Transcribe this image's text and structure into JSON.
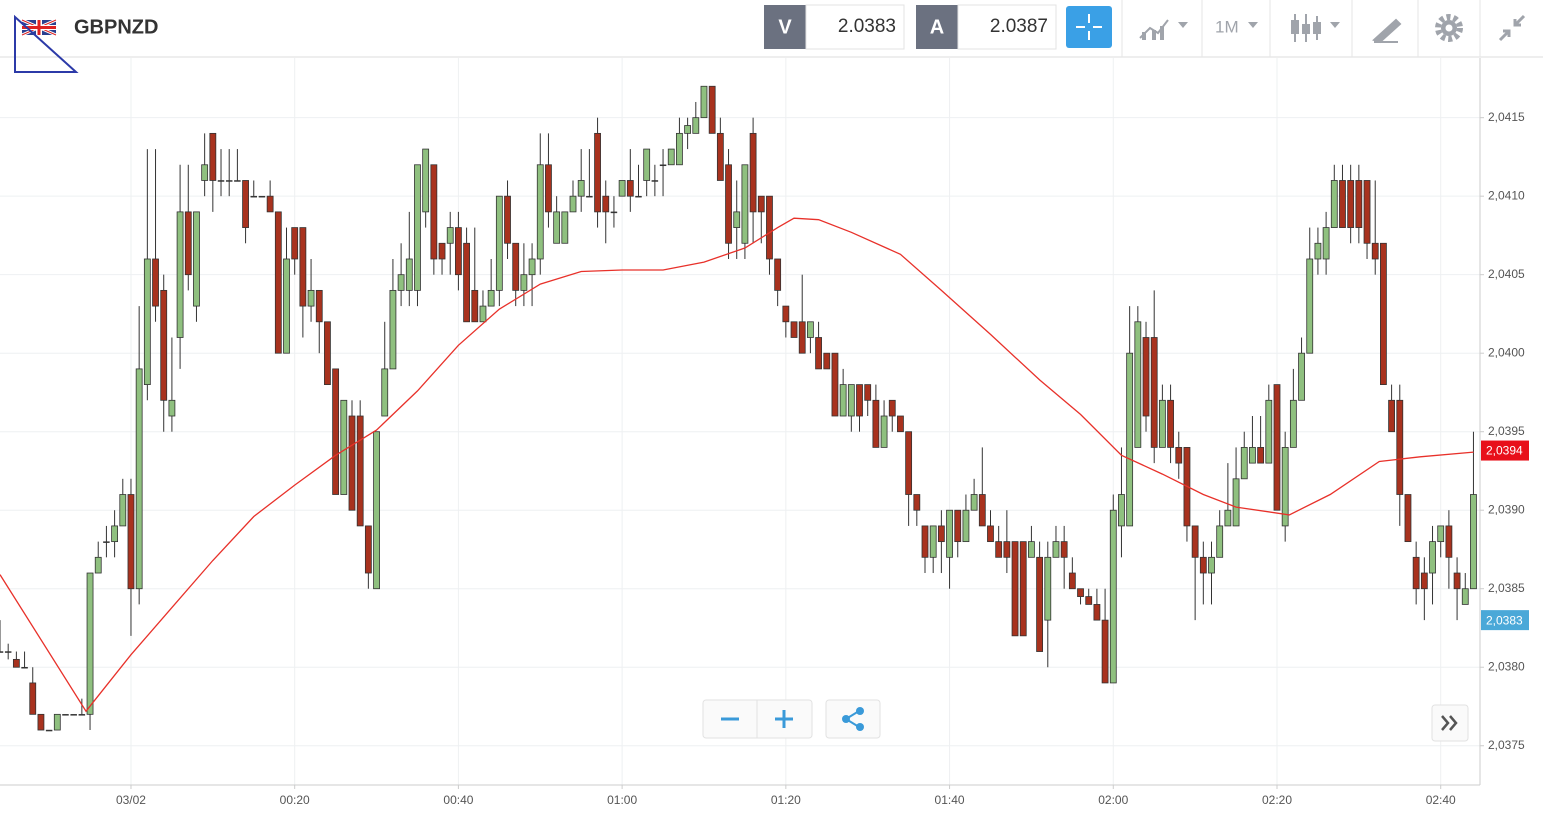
{
  "header": {
    "symbol": "GBPNZD",
    "bid_label": "V",
    "bid": "2.0383",
    "ask_label": "A",
    "ask": "2.0387",
    "timeframe": "1M"
  },
  "chart_data": {
    "type": "candlestick",
    "up_color": "#8fc07f",
    "down_color": "#a8321e",
    "grid": true,
    "xlim": [
      -16,
      164.8
    ],
    "ylim": [
      2.03725,
      2.04188
    ],
    "xticks": [
      {
        "value": 0,
        "label": "03/02"
      },
      {
        "value": 20,
        "label": "00:20"
      },
      {
        "value": 40,
        "label": "00:40"
      },
      {
        "value": 60,
        "label": "01:00"
      },
      {
        "value": 80,
        "label": "01:20"
      },
      {
        "value": 100,
        "label": "01:40"
      },
      {
        "value": 120,
        "label": "02:00"
      },
      {
        "value": 140,
        "label": "02:20"
      },
      {
        "value": 160,
        "label": "02:40"
      }
    ],
    "yticks": [
      {
        "value": 2.0375,
        "label": "2,0375"
      },
      {
        "value": 2.038,
        "label": "2,0380"
      },
      {
        "value": 2.0385,
        "label": "2,0385"
      },
      {
        "value": 2.039,
        "label": "2,0390"
      },
      {
        "value": 2.0395,
        "label": "2,0395"
      },
      {
        "value": 2.04,
        "label": "2,0400"
      },
      {
        "value": 2.0405,
        "label": "2,0405"
      },
      {
        "value": 2.041,
        "label": "2,0410"
      },
      {
        "value": 2.0415,
        "label": "2,0415"
      }
    ],
    "x": [
      -16,
      -15,
      -14,
      -13,
      -12,
      -11,
      -10,
      -9,
      -8,
      -7,
      -6,
      -5,
      -4,
      -3,
      -2,
      -1,
      0,
      1,
      2,
      3,
      4,
      5,
      6,
      7,
      8,
      9,
      10,
      11,
      12,
      13,
      14,
      15,
      16,
      17,
      18,
      19,
      20,
      21,
      22,
      23,
      24,
      25,
      26,
      27,
      28,
      29,
      30,
      31,
      32,
      33,
      34,
      35,
      36,
      37,
      38,
      39,
      40,
      41,
      42,
      43,
      44,
      45,
      46,
      47,
      48,
      49,
      50,
      51,
      52,
      53,
      54,
      55,
      56,
      57,
      58,
      59,
      60,
      61,
      62,
      63,
      64,
      65,
      66,
      67,
      68,
      69,
      70,
      71,
      72,
      73,
      74,
      75,
      76,
      77,
      78,
      79,
      80,
      81,
      82,
      83,
      84,
      85,
      86,
      87,
      88,
      89,
      90,
      91,
      92,
      93,
      94,
      95,
      96,
      97,
      98,
      99,
      100,
      101,
      102,
      103,
      104,
      105,
      106,
      107,
      108,
      109,
      110,
      111,
      112,
      113,
      114,
      115,
      116,
      117,
      118,
      119,
      120,
      121,
      122,
      123,
      124,
      125,
      126,
      127,
      128,
      129,
      130,
      131,
      132,
      133,
      134,
      135,
      136,
      137,
      138,
      139,
      140,
      141,
      142,
      143,
      144,
      145,
      146,
      147,
      148,
      149,
      150,
      151,
      152,
      153,
      154,
      155,
      156,
      157,
      158,
      159,
      160,
      161,
      162,
      163,
      164
    ],
    "open": [
      2.0381,
      2.0381,
      2.03805,
      2.038,
      2.0379,
      2.0377,
      2.0376,
      2.0376,
      2.0377,
      2.0377,
      2.0377,
      2.0377,
      2.0386,
      2.0388,
      2.0388,
      2.0389,
      2.0391,
      2.0385,
      2.0398,
      2.0406,
      2.0404,
      2.0396,
      2.0401,
      2.0409,
      2.0403,
      2.0411,
      2.0414,
      2.0411,
      2.0411,
      2.0411,
      2.0411,
      2.041,
      2.041,
      2.041,
      2.0409,
      2.04,
      2.0408,
      2.0408,
      2.0403,
      2.0404,
      2.0402,
      2.0399,
      2.0391,
      2.0396,
      2.0396,
      2.0389,
      2.0385,
      2.0396,
      2.0399,
      2.0404,
      2.0404,
      2.0404,
      2.0409,
      2.0412,
      2.0407,
      2.0407,
      2.0408,
      2.0407,
      2.0404,
      2.0402,
      2.0403,
      2.0404,
      2.041,
      2.0407,
      2.0404,
      2.0405,
      2.0406,
      2.0412,
      2.0407,
      2.0407,
      2.0409,
      2.041,
      2.041,
      2.0414,
      2.041,
      2.0409,
      2.041,
      2.0411,
      2.041,
      2.0411,
      2.0411,
      2.0412,
      2.0412,
      2.0412,
      2.0414,
      2.0414,
      2.0415,
      2.0417,
      2.0414,
      2.0412,
      2.0408,
      2.0407,
      2.0414,
      2.041,
      2.041,
      2.0406,
      2.0403,
      2.0402,
      2.0402,
      2.0401,
      2.0401,
      2.04,
      2.04,
      2.0396,
      2.0396,
      2.0398,
      2.0398,
      2.0397,
      2.0394,
      2.0397,
      2.0396,
      2.0395,
      2.0391,
      2.0389,
      2.0387,
      2.0389,
      2.0387,
      2.039,
      2.0388,
      2.039,
      2.0391,
      2.0389,
      2.0388,
      2.0388,
      2.0388,
      2.0388,
      2.0387,
      2.0387,
      2.0383,
      2.0387,
      2.0388,
      2.0386,
      2.0385,
      2.03845,
      2.0384,
      2.0383,
      2.0379,
      2.0389,
      2.0389,
      2.0394,
      2.0401,
      2.0401,
      2.0394,
      2.0397,
      2.0394,
      2.0394,
      2.0389,
      2.0387,
      2.0386,
      2.0387,
      2.0389,
      2.0389,
      2.0392,
      2.0393,
      2.0394,
      2.0393,
      2.0398,
      2.0389,
      2.0394,
      2.0397,
      2.04,
      2.0406,
      2.0406,
      2.0408,
      2.0411,
      2.0411,
      2.0411,
      2.0411,
      2.0407,
      2.0407,
      2.0397,
      2.0397,
      2.0391,
      2.0387,
      2.0386,
      2.0386,
      2.0388,
      2.0389,
      2.0386,
      2.0384,
      2.0385
    ],
    "high": [
      2.0383,
      2.03815,
      2.0381,
      2.0381,
      2.038,
      2.0377,
      2.0376,
      2.0377,
      2.0377,
      2.0377,
      2.0378,
      2.0386,
      2.0388,
      2.0389,
      2.039,
      2.0392,
      2.0392,
      2.0403,
      2.0413,
      2.0413,
      2.0405,
      2.0401,
      2.0412,
      2.0412,
      2.0409,
      2.0414,
      2.0414,
      2.0413,
      2.0413,
      2.0413,
      2.0411,
      2.0411,
      2.041,
      2.0411,
      2.0409,
      2.0408,
      2.0408,
      2.0408,
      2.0406,
      2.0404,
      2.0402,
      2.0399,
      2.0397,
      2.0397,
      2.0397,
      2.0389,
      2.0395,
      2.0402,
      2.0406,
      2.0407,
      2.0409,
      2.0412,
      2.0413,
      2.0412,
      2.0407,
      2.0409,
      2.0409,
      2.0408,
      2.0408,
      2.0404,
      2.0406,
      2.041,
      2.0411,
      2.0407,
      2.0407,
      2.0407,
      2.0414,
      2.0414,
      2.041,
      2.0409,
      2.0411,
      2.0413,
      2.0413,
      2.0415,
      2.0411,
      2.041,
      2.0411,
      2.0413,
      2.0412,
      2.0413,
      2.0412,
      2.0413,
      2.0413,
      2.0415,
      2.0415,
      2.0416,
      2.0417,
      2.0417,
      2.0415,
      2.0413,
      2.0411,
      2.0412,
      2.0415,
      2.041,
      2.041,
      2.0406,
      2.0403,
      2.0402,
      2.0405,
      2.0402,
      2.0402,
      2.04,
      2.04,
      2.0399,
      2.0398,
      2.0398,
      2.0398,
      2.0398,
      2.0397,
      2.0397,
      2.0396,
      2.0395,
      2.0391,
      2.0389,
      2.0389,
      2.039,
      2.039,
      2.039,
      2.0391,
      2.0392,
      2.0394,
      2.039,
      2.0389,
      2.039,
      2.0388,
      2.0388,
      2.0389,
      2.0388,
      2.0388,
      2.0389,
      2.0389,
      2.0387,
      2.0385,
      2.0385,
      2.0385,
      2.0385,
      2.0391,
      2.0394,
      2.0403,
      2.0403,
      2.0402,
      2.0404,
      2.0398,
      2.0398,
      2.0395,
      2.0394,
      2.0389,
      2.0388,
      2.0388,
      2.039,
      2.0393,
      2.0394,
      2.0395,
      2.0396,
      2.0396,
      2.0398,
      2.0398,
      2.0395,
      2.0399,
      2.0401,
      2.0408,
      2.0408,
      2.0409,
      2.0412,
      2.0412,
      2.0412,
      2.0412,
      2.0411,
      2.0411,
      2.0407,
      2.0398,
      2.0398,
      2.0391,
      2.0388,
      2.0387,
      2.0389,
      2.0389,
      2.039,
      2.0387,
      2.0386,
      2.0395
    ],
    "low": [
      2.0381,
      2.03805,
      2.038,
      2.038,
      2.0377,
      2.0376,
      2.0376,
      2.0376,
      2.0377,
      2.0377,
      2.0377,
      2.0376,
      2.0386,
      2.0387,
      2.0387,
      2.0389,
      2.0382,
      2.0384,
      2.0397,
      2.0402,
      2.0395,
      2.0395,
      2.0399,
      2.0404,
      2.0402,
      2.041,
      2.0409,
      2.041,
      2.041,
      2.0411,
      2.0407,
      2.041,
      2.041,
      2.0409,
      2.04,
      2.04,
      2.0405,
      2.0401,
      2.0402,
      2.04,
      2.0398,
      2.0391,
      2.0391,
      2.039,
      2.0389,
      2.0385,
      2.0385,
      2.0396,
      2.0399,
      2.0403,
      2.0403,
      2.0403,
      2.0408,
      2.0405,
      2.0405,
      2.0405,
      2.0404,
      2.0402,
      2.0402,
      2.0402,
      2.0403,
      2.0403,
      2.0406,
      2.0403,
      2.0403,
      2.0403,
      2.0405,
      2.0408,
      2.0407,
      2.0407,
      2.0409,
      2.0409,
      2.041,
      2.0408,
      2.0407,
      2.0408,
      2.041,
      2.0409,
      2.041,
      2.041,
      2.041,
      2.041,
      2.0412,
      2.0412,
      2.0413,
      2.0414,
      2.0415,
      2.0414,
      2.0411,
      2.0406,
      2.0406,
      2.0406,
      2.0407,
      2.0407,
      2.0405,
      2.0403,
      2.0401,
      2.0401,
      2.04,
      2.04,
      2.0399,
      2.0399,
      2.0396,
      2.0396,
      2.0395,
      2.0395,
      2.0396,
      2.0394,
      2.0394,
      2.0395,
      2.0395,
      2.0389,
      2.0389,
      2.0386,
      2.0386,
      2.0386,
      2.0385,
      2.0387,
      2.0388,
      2.039,
      2.0389,
      2.0388,
      2.0387,
      2.0386,
      2.0382,
      2.0382,
      2.0387,
      2.0381,
      2.038,
      2.0387,
      2.0385,
      2.0385,
      2.0384,
      2.0384,
      2.0383,
      2.0379,
      2.0379,
      2.0387,
      2.0389,
      2.0394,
      2.0395,
      2.0393,
      2.0394,
      2.0393,
      2.0392,
      2.0388,
      2.0383,
      2.0384,
      2.0384,
      2.0387,
      2.0389,
      2.0389,
      2.0392,
      2.0393,
      2.0393,
      2.0393,
      2.039,
      2.0388,
      2.0394,
      2.0397,
      2.04,
      2.0405,
      2.0405,
      2.0408,
      2.0408,
      2.0407,
      2.0407,
      2.0406,
      2.0405,
      2.0398,
      2.0395,
      2.0389,
      2.0388,
      2.0384,
      2.0383,
      2.0384,
      2.0387,
      2.0385,
      2.0383,
      2.0384,
      2.0385
    ],
    "close": [
      2.0381,
      2.0381,
      2.038,
      2.038,
      2.0377,
      2.0376,
      2.0376,
      2.0377,
      2.0377,
      2.0377,
      2.0377,
      2.0386,
      2.0387,
      2.0388,
      2.0389,
      2.0391,
      2.0385,
      2.0399,
      2.0406,
      2.0403,
      2.0397,
      2.0397,
      2.0409,
      2.0405,
      2.0409,
      2.0412,
      2.0411,
      2.0411,
      2.0411,
      2.0411,
      2.0408,
      2.041,
      2.041,
      2.0409,
      2.04,
      2.0406,
      2.0406,
      2.0403,
      2.0404,
      2.0402,
      2.0398,
      2.0391,
      2.0397,
      2.039,
      2.0389,
      2.0386,
      2.0395,
      2.0399,
      2.0404,
      2.0405,
      2.0406,
      2.0412,
      2.0413,
      2.0406,
      2.0406,
      2.0408,
      2.0405,
      2.0402,
      2.0402,
      2.0403,
      2.0404,
      2.041,
      2.0407,
      2.0404,
      2.0405,
      2.0406,
      2.0412,
      2.0409,
      2.0409,
      2.0409,
      2.041,
      2.0411,
      2.041,
      2.0409,
      2.0409,
      2.0409,
      2.0411,
      2.041,
      2.041,
      2.0413,
      2.0411,
      2.0412,
      2.0413,
      2.0414,
      2.04145,
      2.0415,
      2.0417,
      2.0414,
      2.0411,
      2.0407,
      2.0409,
      2.0412,
      2.0409,
      2.0409,
      2.0406,
      2.0404,
      2.0402,
      2.0401,
      2.04,
      2.0402,
      2.0399,
      2.0399,
      2.0396,
      2.0398,
      2.0398,
      2.0396,
      2.0397,
      2.0394,
      2.0396,
      2.0396,
      2.0395,
      2.0391,
      2.039,
      2.0387,
      2.0389,
      2.0388,
      2.039,
      2.0388,
      2.039,
      2.0391,
      2.0389,
      2.0388,
      2.0387,
      2.0387,
      2.0382,
      2.0382,
      2.0388,
      2.0381,
      2.0387,
      2.0388,
      2.0387,
      2.0385,
      2.03845,
      2.0384,
      2.0383,
      2.0379,
      2.039,
      2.0391,
      2.04,
      2.0402,
      2.0396,
      2.0394,
      2.0397,
      2.0394,
      2.0393,
      2.0389,
      2.0387,
      2.0386,
      2.0387,
      2.0389,
      2.039,
      2.0392,
      2.0394,
      2.0394,
      2.0393,
      2.0397,
      2.039,
      2.0394,
      2.0397,
      2.04,
      2.0406,
      2.0407,
      2.0408,
      2.0411,
      2.0408,
      2.0408,
      2.0408,
      2.0407,
      2.0406,
      2.0398,
      2.0395,
      2.0391,
      2.0388,
      2.0385,
      2.0385,
      2.0388,
      2.0389,
      2.0387,
      2.0385,
      2.0385,
      2.0391
    ],
    "ma": {
      "color": "#e8312a",
      "x": [
        -16,
        -5.5,
        0,
        5,
        10,
        15,
        20,
        25,
        30,
        35,
        40,
        45,
        50,
        55,
        60,
        65,
        70,
        75,
        79,
        81,
        84,
        88,
        94,
        99,
        105,
        111,
        116,
        121,
        126,
        131,
        135,
        141.5,
        146.5,
        152.5,
        157.5,
        164
      ],
      "values": [
        2.03859,
        2.03772,
        2.03808,
        2.03838,
        2.03868,
        2.03896,
        2.03916,
        2.03935,
        2.03951,
        2.03976,
        2.04005,
        2.04028,
        2.04044,
        2.04052,
        2.04053,
        2.04053,
        2.04058,
        2.04067,
        2.0408,
        2.04086,
        2.04085,
        2.04077,
        2.04063,
        2.0404,
        2.04012,
        2.03983,
        2.03961,
        2.03935,
        2.03923,
        2.0391,
        2.03902,
        2.03897,
        2.0391,
        2.03931,
        2.03934,
        2.03937
      ]
    },
    "price_markers": [
      {
        "value": 2.03938,
        "label": "2,0394",
        "color": "#e8101a"
      },
      {
        "value": 2.0383,
        "label": "2,0383",
        "color": "#4aa8d8"
      }
    ]
  }
}
